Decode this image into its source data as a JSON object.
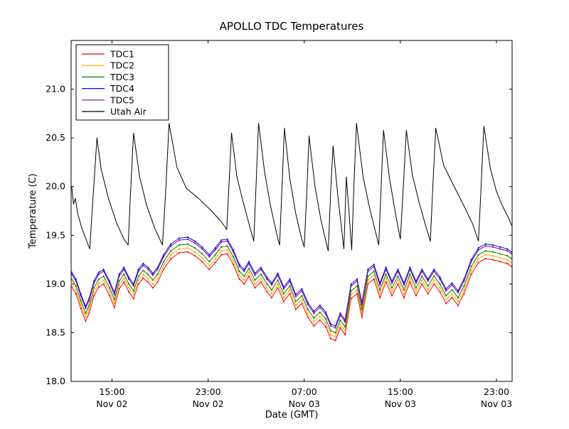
{
  "chart_data": {
    "type": "line",
    "title": "APOLLO TDC Temperatures",
    "xlabel": "Date (GMT)",
    "ylabel": "Temperature (C)",
    "xlim": [
      11.6,
      48.3
    ],
    "ylim": [
      18.0,
      21.5
    ],
    "grid": false,
    "legend_position": "upper left",
    "yticks": [
      {
        "v": 18.0,
        "label": "18.0"
      },
      {
        "v": 18.5,
        "label": "18.5"
      },
      {
        "v": 19.0,
        "label": "19.0"
      },
      {
        "v": 19.5,
        "label": "19.5"
      },
      {
        "v": 20.0,
        "label": "20.0"
      },
      {
        "v": 20.5,
        "label": "20.5"
      },
      {
        "v": 21.0,
        "label": "21.0"
      }
    ],
    "xticks": [
      {
        "v": 15,
        "label": "15:00",
        "sublabel": "Nov 02"
      },
      {
        "v": 23,
        "label": "23:00",
        "sublabel": "Nov 02"
      },
      {
        "v": 31,
        "label": "07:00",
        "sublabel": "Nov 03"
      },
      {
        "v": 39,
        "label": "15:00",
        "sublabel": "Nov 03"
      },
      {
        "v": 47,
        "label": "23:00",
        "sublabel": "Nov 03"
      }
    ],
    "tdc_time_hours": [
      11.65,
      12.0,
      12.4,
      12.8,
      13.1,
      13.5,
      13.9,
      14.3,
      14.8,
      15.2,
      15.6,
      16.0,
      16.4,
      16.8,
      17.2,
      17.6,
      18.0,
      18.4,
      18.8,
      19.3,
      19.9,
      20.6,
      21.3,
      21.9,
      22.5,
      23.1,
      23.6,
      24.1,
      24.6,
      25.1,
      25.6,
      26.0,
      26.4,
      26.9,
      27.4,
      27.9,
      28.3,
      28.8,
      29.3,
      29.8,
      30.3,
      30.8,
      31.3,
      31.8,
      32.3,
      32.8,
      33.2,
      33.6,
      34.0,
      34.4,
      34.9,
      35.4,
      35.8,
      36.3,
      36.8,
      37.3,
      37.8,
      38.3,
      38.8,
      39.3,
      39.8,
      40.3,
      40.8,
      41.3,
      41.8,
      42.3,
      42.8,
      43.3,
      43.8,
      44.3,
      44.9,
      45.5,
      46.1,
      46.7,
      47.3,
      47.9,
      48.25
    ],
    "tdc1_values": [
      18.97,
      18.9,
      18.75,
      18.62,
      18.7,
      18.88,
      18.97,
      19.0,
      18.88,
      18.76,
      18.95,
      19.02,
      18.92,
      18.85,
      19.0,
      19.06,
      19.02,
      18.96,
      19.02,
      19.15,
      19.26,
      19.32,
      19.33,
      19.29,
      19.23,
      19.15,
      19.22,
      19.3,
      19.31,
      19.2,
      19.05,
      19.0,
      19.08,
      18.96,
      19.02,
      18.92,
      18.86,
      18.96,
      18.82,
      18.9,
      18.74,
      18.8,
      18.66,
      18.57,
      18.63,
      18.56,
      18.44,
      18.42,
      18.55,
      18.48,
      18.85,
      18.9,
      18.66,
      19.0,
      19.05,
      18.86,
      19.02,
      18.88,
      19.0,
      18.86,
      19.02,
      18.88,
      19.0,
      18.9,
      19.0,
      18.92,
      18.8,
      18.86,
      18.78,
      18.9,
      19.1,
      19.22,
      19.26,
      19.25,
      19.23,
      19.21,
      19.18
    ],
    "series": [
      {
        "name": "TDC1",
        "color": "#ff0000",
        "offset": 0.0
      },
      {
        "name": "TDC2",
        "color": "#ffa500",
        "offset": 0.04
      },
      {
        "name": "TDC3",
        "color": "#008000",
        "offset": 0.08
      },
      {
        "name": "TDC4",
        "color": "#0000ff",
        "offset": 0.15
      },
      {
        "name": "TDC5",
        "color": "#800080",
        "offset": 0.13
      }
    ],
    "utah_air": {
      "name": "Utah Air",
      "color": "#000000",
      "points": [
        [
          11.65,
          20.0
        ],
        [
          11.8,
          19.82
        ],
        [
          11.95,
          19.88
        ],
        [
          12.15,
          19.72
        ],
        [
          12.5,
          19.57
        ],
        [
          12.9,
          19.44
        ],
        [
          13.15,
          19.36
        ],
        [
          13.35,
          19.75
        ],
        [
          13.75,
          20.5
        ],
        [
          14.1,
          20.18
        ],
        [
          14.7,
          19.88
        ],
        [
          15.4,
          19.62
        ],
        [
          16.0,
          19.46
        ],
        [
          16.35,
          19.4
        ],
        [
          16.55,
          19.95
        ],
        [
          16.8,
          20.55
        ],
        [
          17.3,
          20.1
        ],
        [
          17.9,
          19.8
        ],
        [
          18.6,
          19.56
        ],
        [
          19.2,
          19.4
        ],
        [
          19.45,
          19.9
        ],
        [
          19.75,
          20.65
        ],
        [
          20.4,
          20.2
        ],
        [
          21.2,
          19.98
        ],
        [
          22.2,
          19.88
        ],
        [
          23.2,
          19.76
        ],
        [
          24.1,
          19.64
        ],
        [
          24.55,
          19.56
        ],
        [
          24.75,
          20.05
        ],
        [
          24.95,
          20.55
        ],
        [
          25.4,
          20.1
        ],
        [
          25.9,
          19.85
        ],
        [
          26.4,
          19.62
        ],
        [
          26.8,
          19.44
        ],
        [
          27.0,
          20.05
        ],
        [
          27.2,
          20.65
        ],
        [
          27.7,
          20.15
        ],
        [
          28.2,
          19.8
        ],
        [
          28.7,
          19.52
        ],
        [
          28.95,
          19.4
        ],
        [
          29.15,
          20.0
        ],
        [
          29.35,
          20.6
        ],
        [
          29.8,
          20.08
        ],
        [
          30.3,
          19.72
        ],
        [
          30.75,
          19.48
        ],
        [
          31.0,
          19.38
        ],
        [
          31.2,
          19.9
        ],
        [
          31.4,
          20.52
        ],
        [
          31.9,
          20.0
        ],
        [
          32.4,
          19.65
        ],
        [
          32.8,
          19.44
        ],
        [
          33.0,
          19.34
        ],
        [
          33.2,
          19.95
        ],
        [
          33.4,
          20.42
        ],
        [
          33.8,
          19.9
        ],
        [
          34.1,
          19.58
        ],
        [
          34.3,
          19.36
        ],
        [
          34.5,
          20.1
        ],
        [
          34.75,
          19.7
        ],
        [
          34.95,
          19.35
        ],
        [
          35.15,
          20.05
        ],
        [
          35.35,
          20.65
        ],
        [
          35.9,
          20.1
        ],
        [
          36.4,
          19.8
        ],
        [
          36.9,
          19.55
        ],
        [
          37.2,
          19.4
        ],
        [
          37.4,
          20.0
        ],
        [
          37.6,
          20.58
        ],
        [
          38.1,
          20.08
        ],
        [
          38.6,
          19.72
        ],
        [
          39.0,
          19.46
        ],
        [
          39.2,
          19.9
        ],
        [
          39.5,
          20.58
        ],
        [
          40.0,
          20.12
        ],
        [
          40.6,
          19.82
        ],
        [
          41.1,
          19.6
        ],
        [
          41.5,
          19.44
        ],
        [
          41.7,
          20.0
        ],
        [
          41.95,
          20.6
        ],
        [
          42.6,
          20.22
        ],
        [
          43.4,
          20.02
        ],
        [
          44.3,
          19.8
        ],
        [
          45.0,
          19.62
        ],
        [
          45.5,
          19.44
        ],
        [
          45.7,
          19.95
        ],
        [
          45.95,
          20.62
        ],
        [
          46.5,
          20.18
        ],
        [
          47.0,
          19.95
        ],
        [
          47.5,
          19.8
        ],
        [
          48.0,
          19.68
        ],
        [
          48.25,
          19.6
        ]
      ]
    }
  }
}
